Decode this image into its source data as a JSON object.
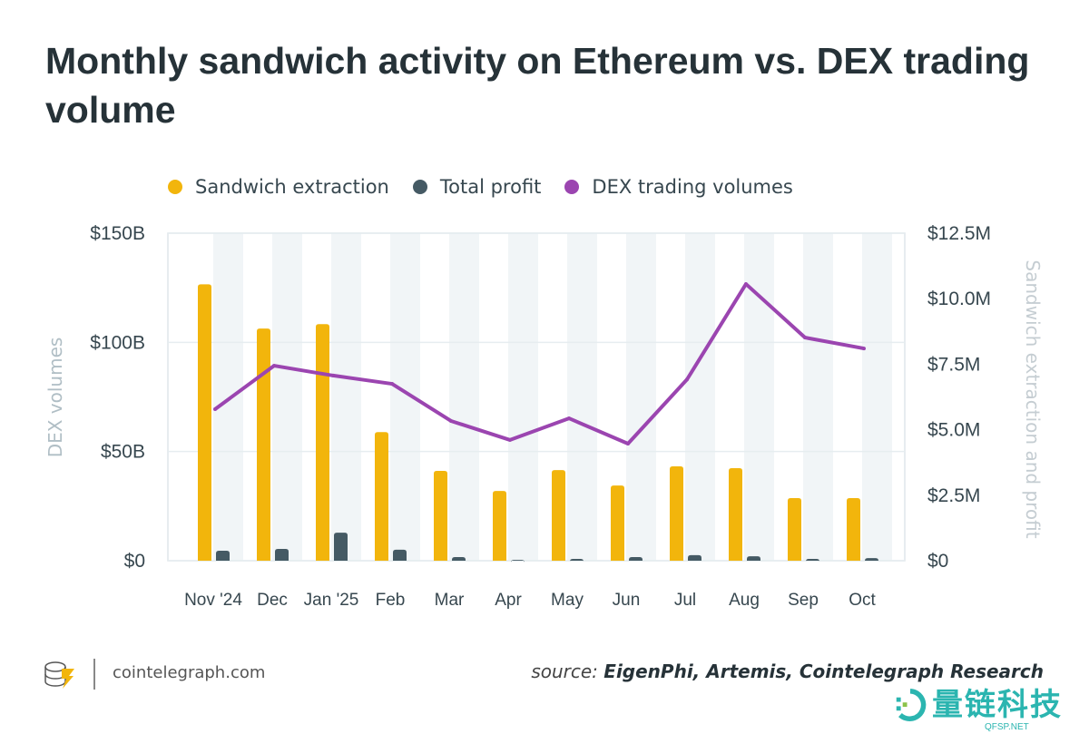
{
  "title": "Monthly sandwich activity on Ethereum vs. DEX trading volume",
  "footer": {
    "site": "cointelegraph.com",
    "source_prefix": "source:",
    "source": "EigenPhi, Artemis, Cointelegraph Research"
  },
  "watermark": {
    "text": "量链科技",
    "sub": "QFSP.NET"
  },
  "colors": {
    "sandwich": "#f2b50c",
    "profit": "#455a64",
    "dex": "#9b45b0",
    "stripe": "#f1f5f7"
  },
  "chart_data": {
    "type": "bar+line",
    "title": "Monthly sandwich activity on Ethereum vs. DEX trading volume",
    "legend_placement": "top",
    "categories": [
      "Nov '24",
      "Dec",
      "Jan '25",
      "Feb",
      "Mar",
      "Apr",
      "May",
      "Jun",
      "Jul",
      "Aug",
      "Sep",
      "Oct"
    ],
    "series": [
      {
        "name": "Sandwich extraction",
        "type": "bar",
        "axis": "right",
        "values": [
          10.55,
          8.86,
          9.03,
          4.91,
          3.43,
          2.66,
          3.46,
          2.87,
          3.6,
          3.53,
          2.39,
          2.39
        ]
      },
      {
        "name": "Total profit",
        "type": "bar",
        "axis": "right",
        "values": [
          0.38,
          0.45,
          1.07,
          0.42,
          0.14,
          0.03,
          0.07,
          0.14,
          0.21,
          0.17,
          0.07,
          0.1
        ]
      },
      {
        "name": "DEX trading volumes",
        "type": "line",
        "axis": "left",
        "values": [
          69.4,
          89.3,
          84.8,
          81,
          64,
          55.3,
          65.2,
          53.6,
          83,
          126.7,
          102.2,
          97.2
        ]
      }
    ],
    "left_axis": {
      "label": "DEX volumes",
      "unit": "B USD",
      "ylim": [
        0,
        150
      ],
      "ticks": [
        "$0",
        "$50B",
        "$100B",
        "$150B"
      ]
    },
    "right_axis": {
      "label": "Sandwich extraction and profit",
      "unit": "M USD",
      "ylim": [
        0,
        12.5
      ],
      "ticks": [
        "$0",
        "$2.5M",
        "$5.0M",
        "$7.5M",
        "$10.0M",
        "$12.5M"
      ]
    },
    "grid": true
  }
}
